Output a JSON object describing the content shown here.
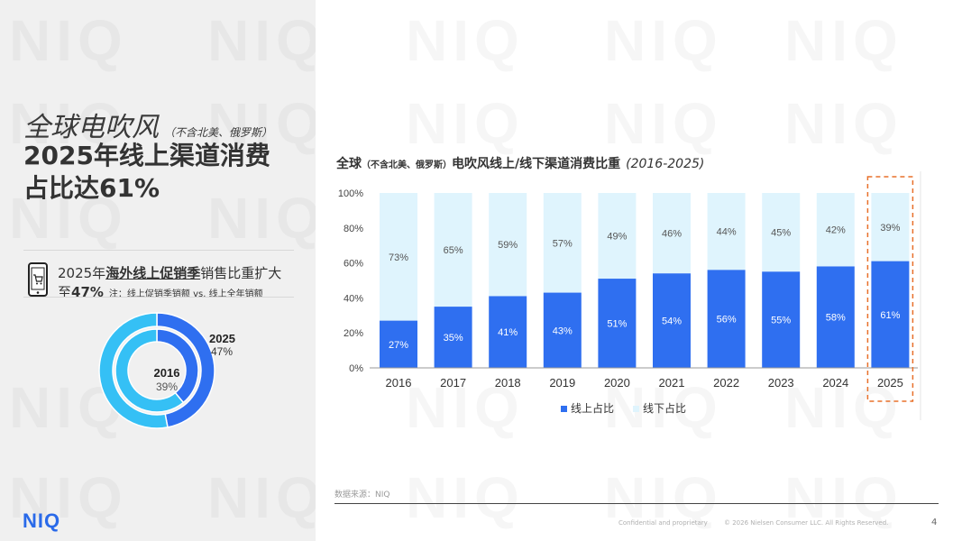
{
  "headline": {
    "line1": "全球电吹风",
    "line1_qualifier": "（不含北美、俄罗斯）",
    "line2": "2025年线上渠道消费",
    "line3": "占比达61%"
  },
  "promo": {
    "prefix": "2025年",
    "emphasis": "海外线上促销季",
    "suffix": "销售比重扩大",
    "line2_prefix": "至",
    "line2_value": "47%",
    "note": "注：线上促销季销额 vs. 线上全年销额"
  },
  "donut": {
    "outer": {
      "year": "2025",
      "value": 47
    },
    "inner": {
      "year": "2016",
      "value": 39
    },
    "outer_label": "47%",
    "inner_label": "39%",
    "colors": {
      "share": "#2f6ff0",
      "rest": "#35c0f5"
    }
  },
  "chart_title": {
    "prefix": "全球",
    "qualifier": "（不含北美、俄罗斯）",
    "main": "电吹风线上/线下渠道消费比重",
    "years": "(2016-2025)"
  },
  "chart_data": {
    "type": "bar",
    "stacked": true,
    "categories": [
      "2016",
      "2017",
      "2018",
      "2019",
      "2020",
      "2021",
      "2022",
      "2023",
      "2024",
      "2025"
    ],
    "series": [
      {
        "name": "线上占比",
        "values": [
          27,
          35,
          41,
          43,
          51,
          54,
          56,
          55,
          58,
          61
        ],
        "color": "#2f6ff0"
      },
      {
        "name": "线下占比",
        "values": [
          73,
          65,
          59,
          57,
          49,
          46,
          44,
          45,
          42,
          39
        ],
        "color": "#dff4fd"
      }
    ],
    "ylim": [
      0,
      100
    ],
    "yticks": [
      "0%",
      "20%",
      "40%",
      "60%",
      "80%",
      "100%"
    ],
    "grid": false,
    "legend": "bottom",
    "highlight": "2025",
    "highlight_color": "#e8702a"
  },
  "source": "数据来源：NIQ",
  "footer": {
    "confidential": "Confidential and proprietary",
    "copyright": "© 2026 Nielsen Consumer LLC. All Rights Reserved.",
    "page": "4"
  },
  "logo": "NIQ",
  "watermark": "NIQ"
}
